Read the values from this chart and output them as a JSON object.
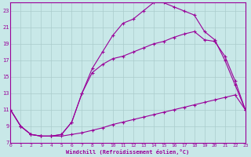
{
  "xlabel": "Windchill (Refroidissement éolien,°C)",
  "bg_color": "#c8e8e8",
  "line_color": "#990099",
  "grid_color": "#aacccc",
  "xlim": [
    0,
    23
  ],
  "ylim": [
    7,
    24
  ],
  "xticks": [
    0,
    1,
    2,
    3,
    4,
    5,
    6,
    7,
    8,
    9,
    10,
    11,
    12,
    13,
    14,
    15,
    16,
    17,
    18,
    19,
    20,
    21,
    22,
    23
  ],
  "yticks": [
    7,
    9,
    11,
    13,
    15,
    17,
    19,
    21,
    23
  ],
  "line1_x": [
    0,
    1,
    2,
    3,
    4,
    5,
    6,
    7,
    8,
    9,
    10,
    11,
    12,
    13,
    14,
    15,
    16,
    17,
    18,
    19,
    20,
    21,
    22,
    23
  ],
  "line1_y": [
    11,
    9,
    8,
    7.8,
    7.8,
    7.8,
    8.0,
    8.2,
    8.5,
    8.8,
    9.2,
    9.5,
    9.8,
    10.1,
    10.4,
    10.7,
    11.0,
    11.3,
    11.6,
    11.9,
    12.2,
    12.5,
    12.8,
    11
  ],
  "line2_x": [
    0,
    1,
    2,
    3,
    4,
    5,
    6,
    7,
    8,
    9,
    10,
    11,
    12,
    13,
    14,
    15,
    16,
    17,
    18,
    19,
    20,
    21,
    22,
    23
  ],
  "line2_y": [
    11,
    9,
    8,
    7.8,
    7.8,
    8.0,
    9.5,
    13.0,
    15.5,
    16.5,
    17.2,
    17.5,
    18.0,
    18.5,
    19.0,
    19.3,
    19.8,
    20.2,
    20.5,
    19.5,
    19.3,
    17.5,
    14.5,
    11
  ],
  "line3_x": [
    0,
    1,
    2,
    3,
    4,
    5,
    6,
    7,
    8,
    9,
    10,
    11,
    12,
    13,
    14,
    15,
    16,
    17,
    18,
    19,
    20,
    21,
    22,
    23
  ],
  "line3_y": [
    11,
    9,
    8,
    7.8,
    7.8,
    8.0,
    9.5,
    13.0,
    16.0,
    18.0,
    20.0,
    21.5,
    22.0,
    23.0,
    24.0,
    24.0,
    23.5,
    23.0,
    22.5,
    20.5,
    19.5,
    17.0,
    14.0,
    11
  ]
}
